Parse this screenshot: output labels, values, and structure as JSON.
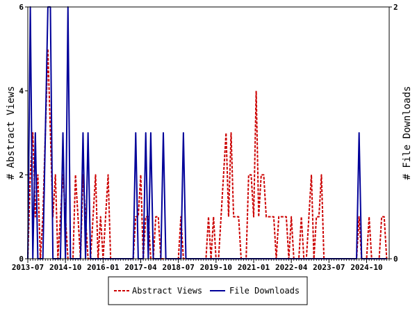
{
  "chart_data": {
    "type": "line",
    "x_start": "2013-07",
    "x_end": "2025-07",
    "x_tick_labels": [
      "2013-07",
      "2014-10",
      "2016-01",
      "2017-04",
      "2018-07",
      "2019-10",
      "2021-01",
      "2022-04",
      "2023-07",
      "2024-10"
    ],
    "ylabel": "# Abstract Views",
    "y2label": "# File Downloads",
    "ylim": [
      0,
      6
    ],
    "y2lim": [
      0,
      2
    ],
    "y_ticks": [
      "0",
      "2",
      "4",
      "6"
    ],
    "y2_ticks": [
      "0",
      "2"
    ],
    "legend_position": "bottom-center",
    "series": [
      {
        "name": "Abstract Views",
        "color": "#cc0000",
        "style": "dashed",
        "axis": "left",
        "points": [
          [
            "2013-07",
            0
          ],
          [
            "2013-08",
            2
          ],
          [
            "2013-09",
            3
          ],
          [
            "2013-10",
            1
          ],
          [
            "2013-11",
            2
          ],
          [
            "2013-12",
            0
          ],
          [
            "2014-01",
            1
          ],
          [
            "2014-02",
            3
          ],
          [
            "2014-03",
            5
          ],
          [
            "2014-04",
            3
          ],
          [
            "2014-05",
            1
          ],
          [
            "2014-06",
            2
          ],
          [
            "2014-07",
            0
          ],
          [
            "2014-08",
            1
          ],
          [
            "2014-09",
            2
          ],
          [
            "2014-10",
            1
          ],
          [
            "2014-11",
            0
          ],
          [
            "2014-12",
            0
          ],
          [
            "2015-01",
            0
          ],
          [
            "2015-02",
            2
          ],
          [
            "2015-03",
            1
          ],
          [
            "2015-04",
            0
          ],
          [
            "2015-05",
            2
          ],
          [
            "2015-06",
            1
          ],
          [
            "2015-07",
            0
          ],
          [
            "2015-08",
            0
          ],
          [
            "2015-09",
            1
          ],
          [
            "2015-10",
            2
          ],
          [
            "2015-11",
            0
          ],
          [
            "2015-12",
            1
          ],
          [
            "2016-01",
            0
          ],
          [
            "2016-02",
            1
          ],
          [
            "2016-03",
            2
          ],
          [
            "2016-04",
            0
          ],
          [
            "2016-05",
            0
          ],
          [
            "2016-06",
            0
          ],
          [
            "2016-07",
            0
          ],
          [
            "2016-08",
            0
          ],
          [
            "2016-09",
            0
          ],
          [
            "2016-10",
            0
          ],
          [
            "2016-11",
            0
          ],
          [
            "2016-12",
            0
          ],
          [
            "2017-01",
            0
          ],
          [
            "2017-02",
            1
          ],
          [
            "2017-03",
            1
          ],
          [
            "2017-04",
            2
          ],
          [
            "2017-05",
            0
          ],
          [
            "2017-06",
            1
          ],
          [
            "2017-07",
            1
          ],
          [
            "2017-08",
            0
          ],
          [
            "2017-09",
            0
          ],
          [
            "2017-10",
            1
          ],
          [
            "2017-11",
            1
          ],
          [
            "2017-12",
            0
          ],
          [
            "2018-01",
            0
          ],
          [
            "2018-02",
            0
          ],
          [
            "2018-03",
            0
          ],
          [
            "2018-04",
            0
          ],
          [
            "2018-05",
            0
          ],
          [
            "2018-06",
            0
          ],
          [
            "2018-07",
            0
          ],
          [
            "2018-08",
            1
          ],
          [
            "2018-09",
            0
          ],
          [
            "2018-10",
            0
          ],
          [
            "2018-11",
            0
          ],
          [
            "2018-12",
            0
          ],
          [
            "2019-01",
            0
          ],
          [
            "2019-02",
            0
          ],
          [
            "2019-03",
            0
          ],
          [
            "2019-04",
            0
          ],
          [
            "2019-05",
            0
          ],
          [
            "2019-06",
            0
          ],
          [
            "2019-07",
            1
          ],
          [
            "2019-08",
            0
          ],
          [
            "2019-09",
            1
          ],
          [
            "2019-10",
            0
          ],
          [
            "2019-11",
            0
          ],
          [
            "2019-12",
            1
          ],
          [
            "2020-01",
            2
          ],
          [
            "2020-02",
            3
          ],
          [
            "2020-03",
            1
          ],
          [
            "2020-04",
            3
          ],
          [
            "2020-05",
            1
          ],
          [
            "2020-06",
            1
          ],
          [
            "2020-07",
            1
          ],
          [
            "2020-08",
            0
          ],
          [
            "2020-09",
            0
          ],
          [
            "2020-10",
            0
          ],
          [
            "2020-11",
            2
          ],
          [
            "2020-12",
            2
          ],
          [
            "2021-01",
            1
          ],
          [
            "2021-02",
            4
          ],
          [
            "2021-03",
            1
          ],
          [
            "2021-04",
            2
          ],
          [
            "2021-05",
            2
          ],
          [
            "2021-06",
            1
          ],
          [
            "2021-07",
            1
          ],
          [
            "2021-08",
            1
          ],
          [
            "2021-09",
            1
          ],
          [
            "2021-10",
            0
          ],
          [
            "2021-11",
            1
          ],
          [
            "2021-12",
            1
          ],
          [
            "2022-01",
            1
          ],
          [
            "2022-02",
            1
          ],
          [
            "2022-03",
            0
          ],
          [
            "2022-04",
            1
          ],
          [
            "2022-05",
            0
          ],
          [
            "2022-06",
            0
          ],
          [
            "2022-07",
            0
          ],
          [
            "2022-08",
            1
          ],
          [
            "2022-09",
            0
          ],
          [
            "2022-10",
            0
          ],
          [
            "2022-11",
            1
          ],
          [
            "2022-12",
            2
          ],
          [
            "2023-01",
            0
          ],
          [
            "2023-02",
            1
          ],
          [
            "2023-03",
            1
          ],
          [
            "2023-04",
            2
          ],
          [
            "2023-05",
            0
          ],
          [
            "2023-06",
            0
          ],
          [
            "2023-07",
            0
          ],
          [
            "2023-08",
            0
          ],
          [
            "2023-09",
            0
          ],
          [
            "2023-10",
            0
          ],
          [
            "2023-11",
            0
          ],
          [
            "2023-12",
            0
          ],
          [
            "2024-01",
            0
          ],
          [
            "2024-02",
            0
          ],
          [
            "2024-03",
            0
          ],
          [
            "2024-04",
            0
          ],
          [
            "2024-05",
            0
          ],
          [
            "2024-06",
            0
          ],
          [
            "2024-07",
            1
          ],
          [
            "2024-08",
            0
          ],
          [
            "2024-09",
            0
          ],
          [
            "2024-10",
            0
          ],
          [
            "2024-11",
            1
          ],
          [
            "2024-12",
            0
          ],
          [
            "2025-01",
            0
          ],
          [
            "2025-02",
            0
          ],
          [
            "2025-03",
            0
          ],
          [
            "2025-04",
            1
          ],
          [
            "2025-05",
            1
          ],
          [
            "2025-06",
            0
          ]
        ]
      },
      {
        "name": "File Downloads",
        "color": "#000099",
        "style": "solid",
        "axis": "right",
        "points": [
          [
            "2013-07",
            0
          ],
          [
            "2013-08",
            2
          ],
          [
            "2013-09",
            0
          ],
          [
            "2013-10",
            1
          ],
          [
            "2013-11",
            0
          ],
          [
            "2013-12",
            0
          ],
          [
            "2014-01",
            0
          ],
          [
            "2014-02",
            1
          ],
          [
            "2014-03",
            2
          ],
          [
            "2014-04",
            2
          ],
          [
            "2014-05",
            0
          ],
          [
            "2014-06",
            0
          ],
          [
            "2014-07",
            0
          ],
          [
            "2014-08",
            0
          ],
          [
            "2014-09",
            1
          ],
          [
            "2014-10",
            0
          ],
          [
            "2014-11",
            2
          ],
          [
            "2014-12",
            0
          ],
          [
            "2015-01",
            0
          ],
          [
            "2015-02",
            0
          ],
          [
            "2015-03",
            0
          ],
          [
            "2015-04",
            0
          ],
          [
            "2015-05",
            1
          ],
          [
            "2015-06",
            0
          ],
          [
            "2015-07",
            1
          ],
          [
            "2015-08",
            0
          ],
          [
            "2015-09",
            0
          ],
          [
            "2015-10",
            0
          ],
          [
            "2015-11",
            0
          ],
          [
            "2015-12",
            0
          ],
          [
            "2016-01",
            0
          ],
          [
            "2016-02",
            0
          ],
          [
            "2016-03",
            0
          ],
          [
            "2016-04",
            0
          ],
          [
            "2016-05",
            0
          ],
          [
            "2016-06",
            0
          ],
          [
            "2016-07",
            0
          ],
          [
            "2016-08",
            0
          ],
          [
            "2016-09",
            0
          ],
          [
            "2016-10",
            0
          ],
          [
            "2016-11",
            0
          ],
          [
            "2016-12",
            0
          ],
          [
            "2017-01",
            0
          ],
          [
            "2017-02",
            1
          ],
          [
            "2017-03",
            0
          ],
          [
            "2017-04",
            0
          ],
          [
            "2017-05",
            0
          ],
          [
            "2017-06",
            1
          ],
          [
            "2017-07",
            0
          ],
          [
            "2017-08",
            1
          ],
          [
            "2017-09",
            0
          ],
          [
            "2017-10",
            0
          ],
          [
            "2017-11",
            0
          ],
          [
            "2017-12",
            0
          ],
          [
            "2018-01",
            1
          ],
          [
            "2018-02",
            0
          ],
          [
            "2018-03",
            0
          ],
          [
            "2018-04",
            0
          ],
          [
            "2018-05",
            0
          ],
          [
            "2018-06",
            0
          ],
          [
            "2018-07",
            0
          ],
          [
            "2018-08",
            0
          ],
          [
            "2018-09",
            1
          ],
          [
            "2018-10",
            0
          ],
          [
            "2018-11",
            0
          ],
          [
            "2018-12",
            0
          ],
          [
            "2019-01",
            0
          ],
          [
            "2019-02",
            0
          ],
          [
            "2019-03",
            0
          ],
          [
            "2019-04",
            0
          ],
          [
            "2019-05",
            0
          ],
          [
            "2019-06",
            0
          ],
          [
            "2019-07",
            0
          ],
          [
            "2019-08",
            0
          ],
          [
            "2019-09",
            0
          ],
          [
            "2019-10",
            0
          ],
          [
            "2019-11",
            0
          ],
          [
            "2019-12",
            0
          ],
          [
            "2020-01",
            0
          ],
          [
            "2020-02",
            0
          ],
          [
            "2020-03",
            0
          ],
          [
            "2020-04",
            0
          ],
          [
            "2020-05",
            0
          ],
          [
            "2020-06",
            0
          ],
          [
            "2020-07",
            0
          ],
          [
            "2020-08",
            0
          ],
          [
            "2020-09",
            0
          ],
          [
            "2020-10",
            0
          ],
          [
            "2020-11",
            0
          ],
          [
            "2020-12",
            0
          ],
          [
            "2021-01",
            0
          ],
          [
            "2021-02",
            0
          ],
          [
            "2021-03",
            0
          ],
          [
            "2021-04",
            0
          ],
          [
            "2021-05",
            0
          ],
          [
            "2021-06",
            0
          ],
          [
            "2021-07",
            0
          ],
          [
            "2021-08",
            0
          ],
          [
            "2021-09",
            0
          ],
          [
            "2021-10",
            0
          ],
          [
            "2021-11",
            0
          ],
          [
            "2021-12",
            0
          ],
          [
            "2022-01",
            0
          ],
          [
            "2022-02",
            0
          ],
          [
            "2022-03",
            0
          ],
          [
            "2022-04",
            0
          ],
          [
            "2022-05",
            0
          ],
          [
            "2022-06",
            0
          ],
          [
            "2022-07",
            0
          ],
          [
            "2022-08",
            0
          ],
          [
            "2022-09",
            0
          ],
          [
            "2022-10",
            0
          ],
          [
            "2022-11",
            0
          ],
          [
            "2022-12",
            0
          ],
          [
            "2023-01",
            0
          ],
          [
            "2023-02",
            0
          ],
          [
            "2023-03",
            0
          ],
          [
            "2023-04",
            0
          ],
          [
            "2023-05",
            0
          ],
          [
            "2023-06",
            0
          ],
          [
            "2023-07",
            0
          ],
          [
            "2023-08",
            0
          ],
          [
            "2023-09",
            0
          ],
          [
            "2023-10",
            0
          ],
          [
            "2023-11",
            0
          ],
          [
            "2023-12",
            0
          ],
          [
            "2024-01",
            0
          ],
          [
            "2024-02",
            0
          ],
          [
            "2024-03",
            0
          ],
          [
            "2024-04",
            0
          ],
          [
            "2024-05",
            0
          ],
          [
            "2024-06",
            0
          ],
          [
            "2024-07",
            1
          ],
          [
            "2024-08",
            0
          ],
          [
            "2024-09",
            0
          ],
          [
            "2024-10",
            0
          ],
          [
            "2024-11",
            0
          ],
          [
            "2024-12",
            0
          ],
          [
            "2025-01",
            0
          ],
          [
            "2025-02",
            0
          ],
          [
            "2025-03",
            0
          ],
          [
            "2025-04",
            0
          ],
          [
            "2025-05",
            0
          ],
          [
            "2025-06",
            0
          ]
        ]
      }
    ]
  }
}
